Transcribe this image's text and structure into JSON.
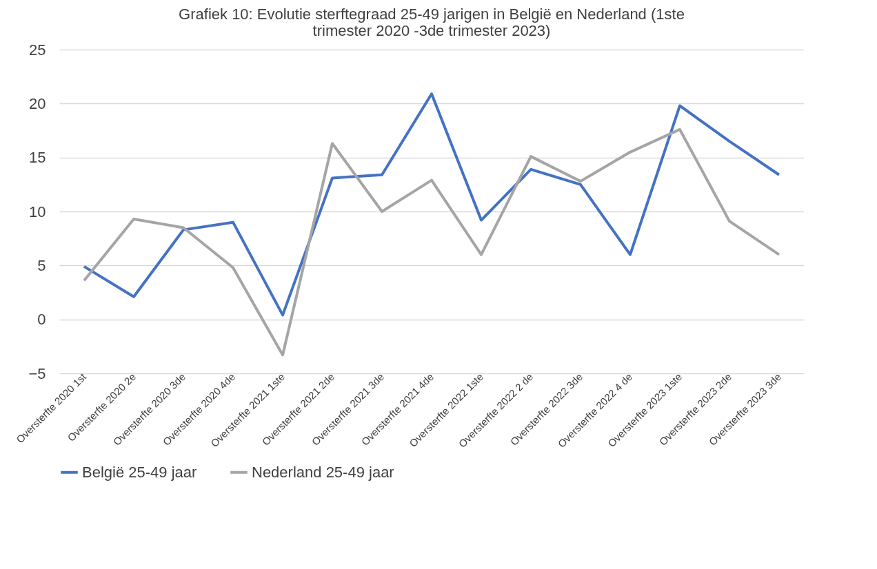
{
  "chart_data": {
    "type": "line",
    "title": [
      "Grafiek 10: Evolutie sterftegraad 25-49 jarigen in België en Nederland (1ste",
      "trimester 2020 -3de trimester 2023)"
    ],
    "categories": [
      "Oversterfte 2020 1st",
      "Oversterfte 2020 2e",
      "Oversterfte 2020 3de",
      "Oversterfte 2020 4de",
      "Oversterfte 2021 1ste",
      "Oversterfte 2021 2de",
      "Oversterfte 2021 3de",
      "Oversterfte 2021 4de",
      "Oversterfte 2022 1ste",
      "Oversterfte 2022 2 de",
      "Oversterfte 2022 3de",
      "Oversterfte 2022 4 de",
      "Oversterfte 2023 1ste",
      "Oversterfte 2023 2de",
      "Oversterfte 2023 3de"
    ],
    "series": [
      {
        "name": "België 25-49 jaar",
        "color": "#4472c4",
        "values": [
          4.9,
          2.1,
          8.3,
          9.0,
          0.4,
          13.1,
          13.4,
          20.9,
          9.2,
          13.9,
          12.5,
          6.0,
          19.8,
          16.5,
          13.4
        ]
      },
      {
        "name": "Nederland 25-49 jaar",
        "color": "#a5a5a5",
        "values": [
          3.6,
          9.3,
          8.5,
          4.8,
          -3.3,
          16.3,
          10.0,
          12.9,
          6.0,
          15.1,
          12.8,
          15.5,
          17.6,
          9.1,
          6.0
        ]
      }
    ],
    "ylim": [
      -5,
      25
    ],
    "yticks": [
      -5,
      0,
      5,
      10,
      15,
      20,
      25
    ],
    "grid": "y",
    "legend": "bottom",
    "marker": "none",
    "line_style": "solid"
  }
}
